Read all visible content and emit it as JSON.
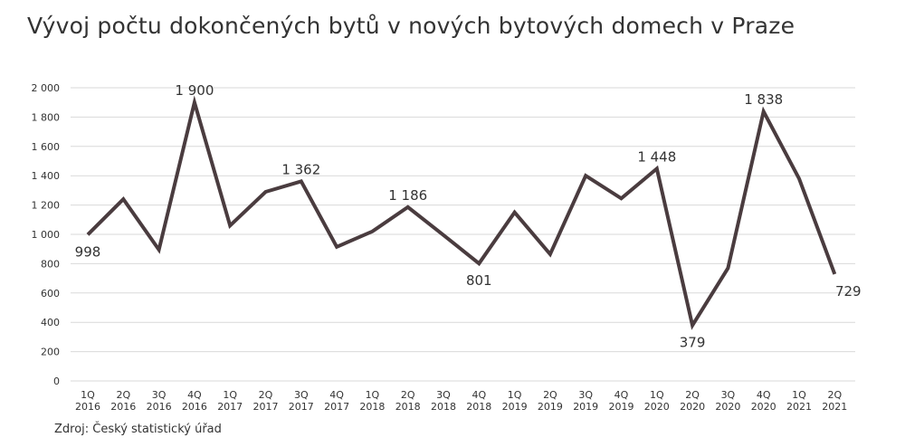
{
  "title": "Vývoj počtu dokončených bytů v nových bytových domech v Praze",
  "source": "Zdroj: Český statistický úřad",
  "colors": {
    "line": "#4a3c3f",
    "grid": "#d9d9d9",
    "text": "#333333"
  },
  "chart_data": {
    "type": "line",
    "title": "Vývoj počtu dokončených bytů v nových bytových domech v Praze",
    "xlabel": "",
    "ylabel": "",
    "ylim": [
      0,
      2000
    ],
    "yticks": [
      0,
      200,
      400,
      600,
      800,
      1000,
      1200,
      1400,
      1600,
      1800,
      2000
    ],
    "ytick_labels": [
      "0",
      "200",
      "400",
      "600",
      "800",
      "1 000",
      "1 200",
      "1 400",
      "1 600",
      "1 800",
      "2 000"
    ],
    "grid": true,
    "categories": [
      [
        "1Q",
        "2016"
      ],
      [
        "2Q",
        "2016"
      ],
      [
        "3Q",
        "2016"
      ],
      [
        "4Q",
        "2016"
      ],
      [
        "1Q",
        "2017"
      ],
      [
        "2Q",
        "2017"
      ],
      [
        "3Q",
        "2017"
      ],
      [
        "4Q",
        "2017"
      ],
      [
        "1Q",
        "2018"
      ],
      [
        "2Q",
        "2018"
      ],
      [
        "3Q",
        "2018"
      ],
      [
        "4Q",
        "2018"
      ],
      [
        "1Q",
        "2019"
      ],
      [
        "2Q",
        "2019"
      ],
      [
        "3Q",
        "2019"
      ],
      [
        "4Q",
        "2019"
      ],
      [
        "1Q",
        "2020"
      ],
      [
        "2Q",
        "2020"
      ],
      [
        "3Q",
        "2020"
      ],
      [
        "4Q",
        "2020"
      ],
      [
        "1Q",
        "2021"
      ],
      [
        "2Q",
        "2021"
      ]
    ],
    "values": [
      998,
      1240,
      895,
      1900,
      1060,
      1290,
      1362,
      915,
      1020,
      1186,
      995,
      801,
      1150,
      865,
      1400,
      1245,
      1448,
      379,
      770,
      1838,
      1380,
      729
    ],
    "data_labels": [
      {
        "index": 0,
        "text": "998",
        "position": "below"
      },
      {
        "index": 3,
        "text": "1 900",
        "position": "above"
      },
      {
        "index": 6,
        "text": "1 362",
        "position": "above"
      },
      {
        "index": 9,
        "text": "1 186",
        "position": "above"
      },
      {
        "index": 11,
        "text": "801",
        "position": "below"
      },
      {
        "index": 16,
        "text": "1 448",
        "position": "above"
      },
      {
        "index": 17,
        "text": "379",
        "position": "below"
      },
      {
        "index": 19,
        "text": "1 838",
        "position": "above"
      },
      {
        "index": 21,
        "text": "729",
        "position": "below"
      }
    ]
  }
}
